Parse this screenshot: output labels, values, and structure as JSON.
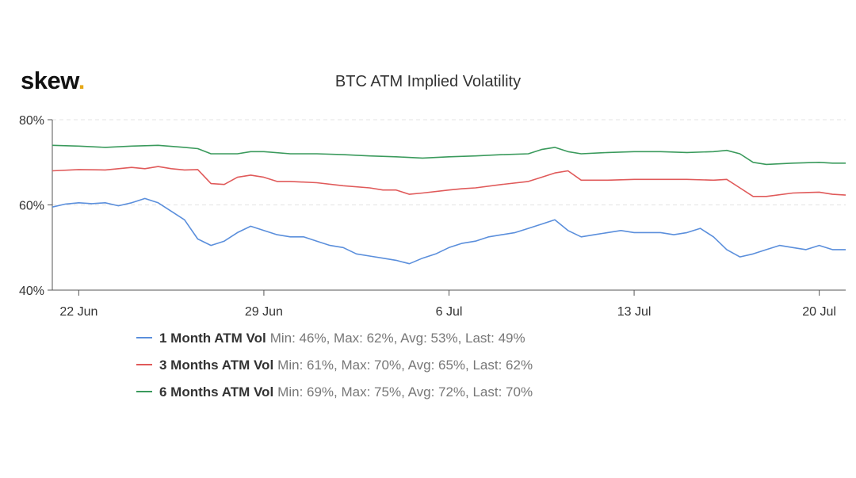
{
  "brand": {
    "name": "skew",
    "dot": "."
  },
  "chart_data": {
    "type": "line",
    "title": "BTC ATM Implied Volatility",
    "xlabel": "",
    "ylabel": "",
    "ylim": [
      40,
      80
    ],
    "y_ticks": [
      {
        "value": 80,
        "label": "80%"
      },
      {
        "value": 60,
        "label": "60%"
      },
      {
        "value": 40,
        "label": "40%"
      }
    ],
    "x_ticks": [
      {
        "value": 1,
        "label": "22 Jun"
      },
      {
        "value": 8,
        "label": "29 Jun"
      },
      {
        "value": 15,
        "label": "6 Jul"
      },
      {
        "value": 22,
        "label": "13 Jul"
      },
      {
        "value": 29,
        "label": "20 Jul"
      }
    ],
    "x_unit_note": "days in June/July 2020; 22 Jun = day 1",
    "series": [
      {
        "name": "1 Month ATM Vol",
        "stats": "Min: 46%, Max: 62%, Avg: 53%, Last: 49%",
        "color": "#5b8fdc",
        "x": [
          0,
          0.5,
          1,
          1.5,
          2,
          2.5,
          3,
          3.5,
          4,
          4.5,
          5,
          5.5,
          6,
          6.5,
          7,
          7.5,
          8,
          8.5,
          9,
          9.5,
          10,
          10.5,
          11,
          11.5,
          12,
          12.5,
          13,
          13.5,
          14,
          14.5,
          15,
          15.5,
          16,
          16.5,
          17,
          17.5,
          18,
          18.5,
          19,
          19.5,
          20,
          20.5,
          21,
          21.5,
          22,
          22.5,
          23,
          23.5,
          24,
          24.5,
          25,
          25.5,
          26,
          26.5,
          27,
          27.5,
          28,
          28.5,
          29,
          29.5,
          30
        ],
        "values": [
          59.5,
          60.2,
          60.5,
          60.3,
          60.5,
          59.8,
          60.5,
          61.5,
          60.5,
          58.5,
          56.5,
          52,
          50.5,
          51.5,
          53.5,
          55,
          54,
          53,
          52.5,
          52.5,
          51.5,
          50.5,
          50,
          48.5,
          48,
          47.5,
          47,
          46.2,
          47.5,
          48.5,
          50,
          51,
          51.5,
          52.5,
          53,
          53.5,
          54.5,
          55.5,
          56.5,
          54,
          52.5,
          53,
          53.5,
          54,
          53.5,
          53.5,
          53.5,
          53,
          53.5,
          54.5,
          52.5,
          49.5,
          47.8,
          48.5,
          49.5,
          50.5,
          50,
          49.5,
          50.5,
          49.5,
          49.5
        ]
      },
      {
        "name": "3 Months ATM Vol",
        "stats": "Min: 61%, Max: 70%, Avg: 65%, Last: 62%",
        "color": "#e05a5a",
        "x": [
          0,
          1,
          2,
          3,
          3.5,
          4,
          4.5,
          5,
          5.5,
          6,
          6.5,
          7,
          7.5,
          8,
          8.5,
          9,
          10,
          11,
          12,
          12.5,
          13,
          13.5,
          14,
          15,
          15.5,
          16,
          17,
          18,
          18.5,
          19,
          19.5,
          20,
          21,
          22,
          23,
          24,
          25,
          25.5,
          26,
          26.5,
          27,
          28,
          29,
          29.5,
          30
        ],
        "values": [
          68,
          68.3,
          68.2,
          68.8,
          68.5,
          69,
          68.5,
          68.2,
          68.3,
          65,
          64.8,
          66.5,
          67,
          66.5,
          65.5,
          65.5,
          65.2,
          64.5,
          64,
          63.5,
          63.5,
          62.5,
          62.8,
          63.5,
          63.8,
          64,
          64.8,
          65.5,
          66.5,
          67.5,
          68,
          65.8,
          65.8,
          66,
          66,
          66,
          65.8,
          66,
          64,
          62,
          62,
          62.8,
          63,
          62.5,
          62.3
        ]
      },
      {
        "name": "6 Months ATM Vol",
        "stats": "Min: 69%, Max: 75%, Avg: 72%, Last: 70%",
        "color": "#3a9a5c",
        "x": [
          0,
          1,
          2,
          3,
          4,
          5,
          5.5,
          6,
          7,
          7.5,
          8,
          9,
          10,
          11,
          12,
          13,
          14,
          15,
          16,
          17,
          18,
          18.5,
          19,
          19.5,
          20,
          21,
          22,
          23,
          24,
          25,
          25.5,
          26,
          26.5,
          27,
          28,
          29,
          29.5,
          30
        ],
        "values": [
          74,
          73.8,
          73.5,
          73.8,
          74,
          73.5,
          73.2,
          72,
          72,
          72.5,
          72.5,
          72,
          72,
          71.8,
          71.5,
          71.3,
          71,
          71.3,
          71.5,
          71.8,
          72,
          73,
          73.5,
          72.5,
          72,
          72.3,
          72.5,
          72.5,
          72.3,
          72.5,
          72.8,
          72,
          70,
          69.5,
          69.8,
          70,
          69.8,
          69.8
        ]
      }
    ]
  }
}
